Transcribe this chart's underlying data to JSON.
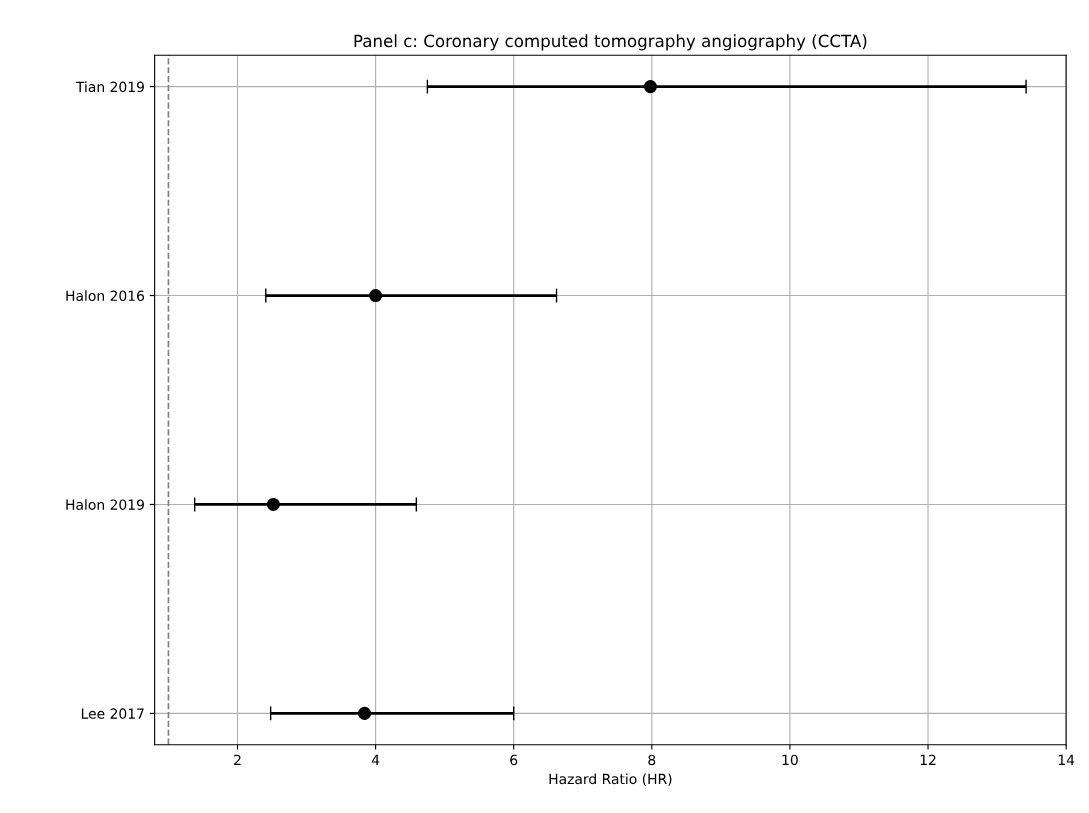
{
  "chart_data": {
    "type": "scatter",
    "orientation": "horizontal",
    "title": "Panel c: Coronary computed tomography angiography (CCTA)",
    "xlabel": "Hazard Ratio (HR)",
    "categories": [
      "Tian 2019",
      "Halon 2016",
      "Halon 2019",
      "Lee 2017"
    ],
    "values": [
      7.98,
      4.0,
      2.52,
      3.84
    ],
    "errors": [
      [
        4.75,
        13.42
      ],
      [
        2.41,
        6.62
      ],
      [
        1.38,
        4.59
      ],
      [
        2.48,
        6.0
      ]
    ],
    "color": "#000000",
    "marker": "circle",
    "xlim": [
      0.8,
      14
    ],
    "xticks": [
      2,
      4,
      6,
      8,
      10,
      12,
      14
    ],
    "ref_lines": [
      {
        "axis": "x",
        "value": 1,
        "color": "#808080",
        "line_style": "dashed"
      }
    ],
    "grid": true
  }
}
